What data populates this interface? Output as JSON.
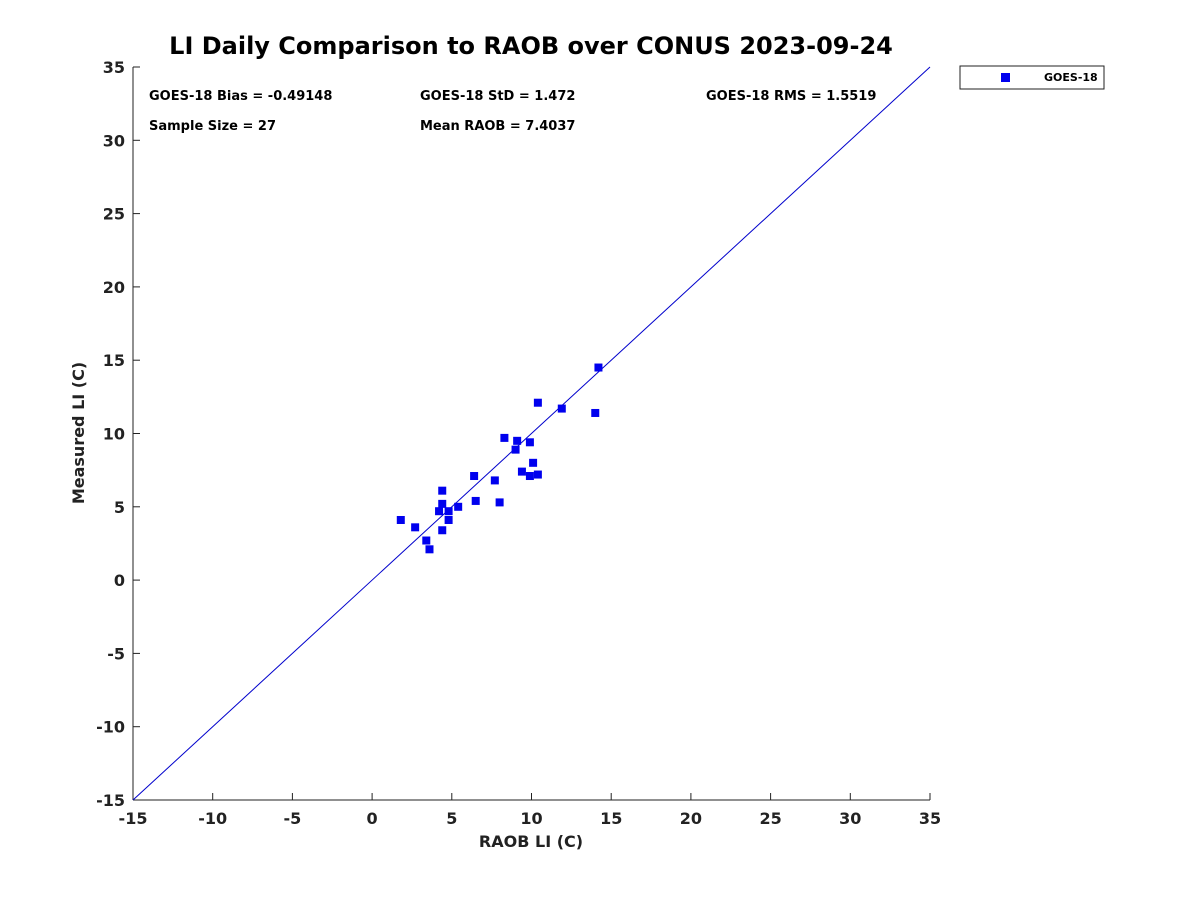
{
  "chart_data": {
    "type": "scatter",
    "title": "LI Daily Comparison to RAOB over CONUS 2023-09-24",
    "xlabel": "RAOB LI (C)",
    "ylabel": "Measured LI (C)",
    "xlim": [
      -15,
      35
    ],
    "ylim": [
      -15,
      35
    ],
    "xticks": [
      -15,
      -10,
      -5,
      0,
      5,
      10,
      15,
      20,
      25,
      30,
      35
    ],
    "yticks": [
      -15,
      -10,
      -5,
      0,
      5,
      10,
      15,
      20,
      25,
      30,
      35
    ],
    "grid": false,
    "legend": {
      "placement": "outside-top-right",
      "entries": [
        "GOES-18"
      ]
    },
    "stats": {
      "bias": "GOES-18 Bias = -0.49148",
      "std": "GOES-18 StD = 1.472",
      "rms": "GOES-18 RMS = 1.5519",
      "sample_size": "Sample Size = 27",
      "mean_raob": "Mean RAOB = 7.4037"
    },
    "reference_line": {
      "type": "one-to-one",
      "color": "#0000cc"
    },
    "series": [
      {
        "name": "GOES-18",
        "color": "#0000ee",
        "marker": "square",
        "points": [
          [
            1.8,
            4.1
          ],
          [
            2.7,
            3.6
          ],
          [
            3.4,
            2.7
          ],
          [
            3.6,
            2.1
          ],
          [
            4.2,
            4.7
          ],
          [
            4.4,
            6.1
          ],
          [
            4.4,
            5.2
          ],
          [
            4.4,
            3.4
          ],
          [
            4.8,
            4.1
          ],
          [
            4.8,
            4.7
          ],
          [
            5.4,
            5.0
          ],
          [
            6.4,
            7.1
          ],
          [
            6.5,
            5.4
          ],
          [
            7.7,
            6.8
          ],
          [
            8.0,
            5.3
          ],
          [
            8.3,
            9.7
          ],
          [
            9.0,
            8.9
          ],
          [
            9.1,
            9.5
          ],
          [
            9.4,
            7.4
          ],
          [
            9.9,
            9.4
          ],
          [
            9.9,
            7.1
          ],
          [
            10.1,
            8.0
          ],
          [
            10.4,
            7.2
          ],
          [
            10.4,
            12.1
          ],
          [
            11.9,
            11.7
          ],
          [
            14.0,
            11.4
          ],
          [
            14.2,
            14.5
          ]
        ]
      }
    ]
  }
}
